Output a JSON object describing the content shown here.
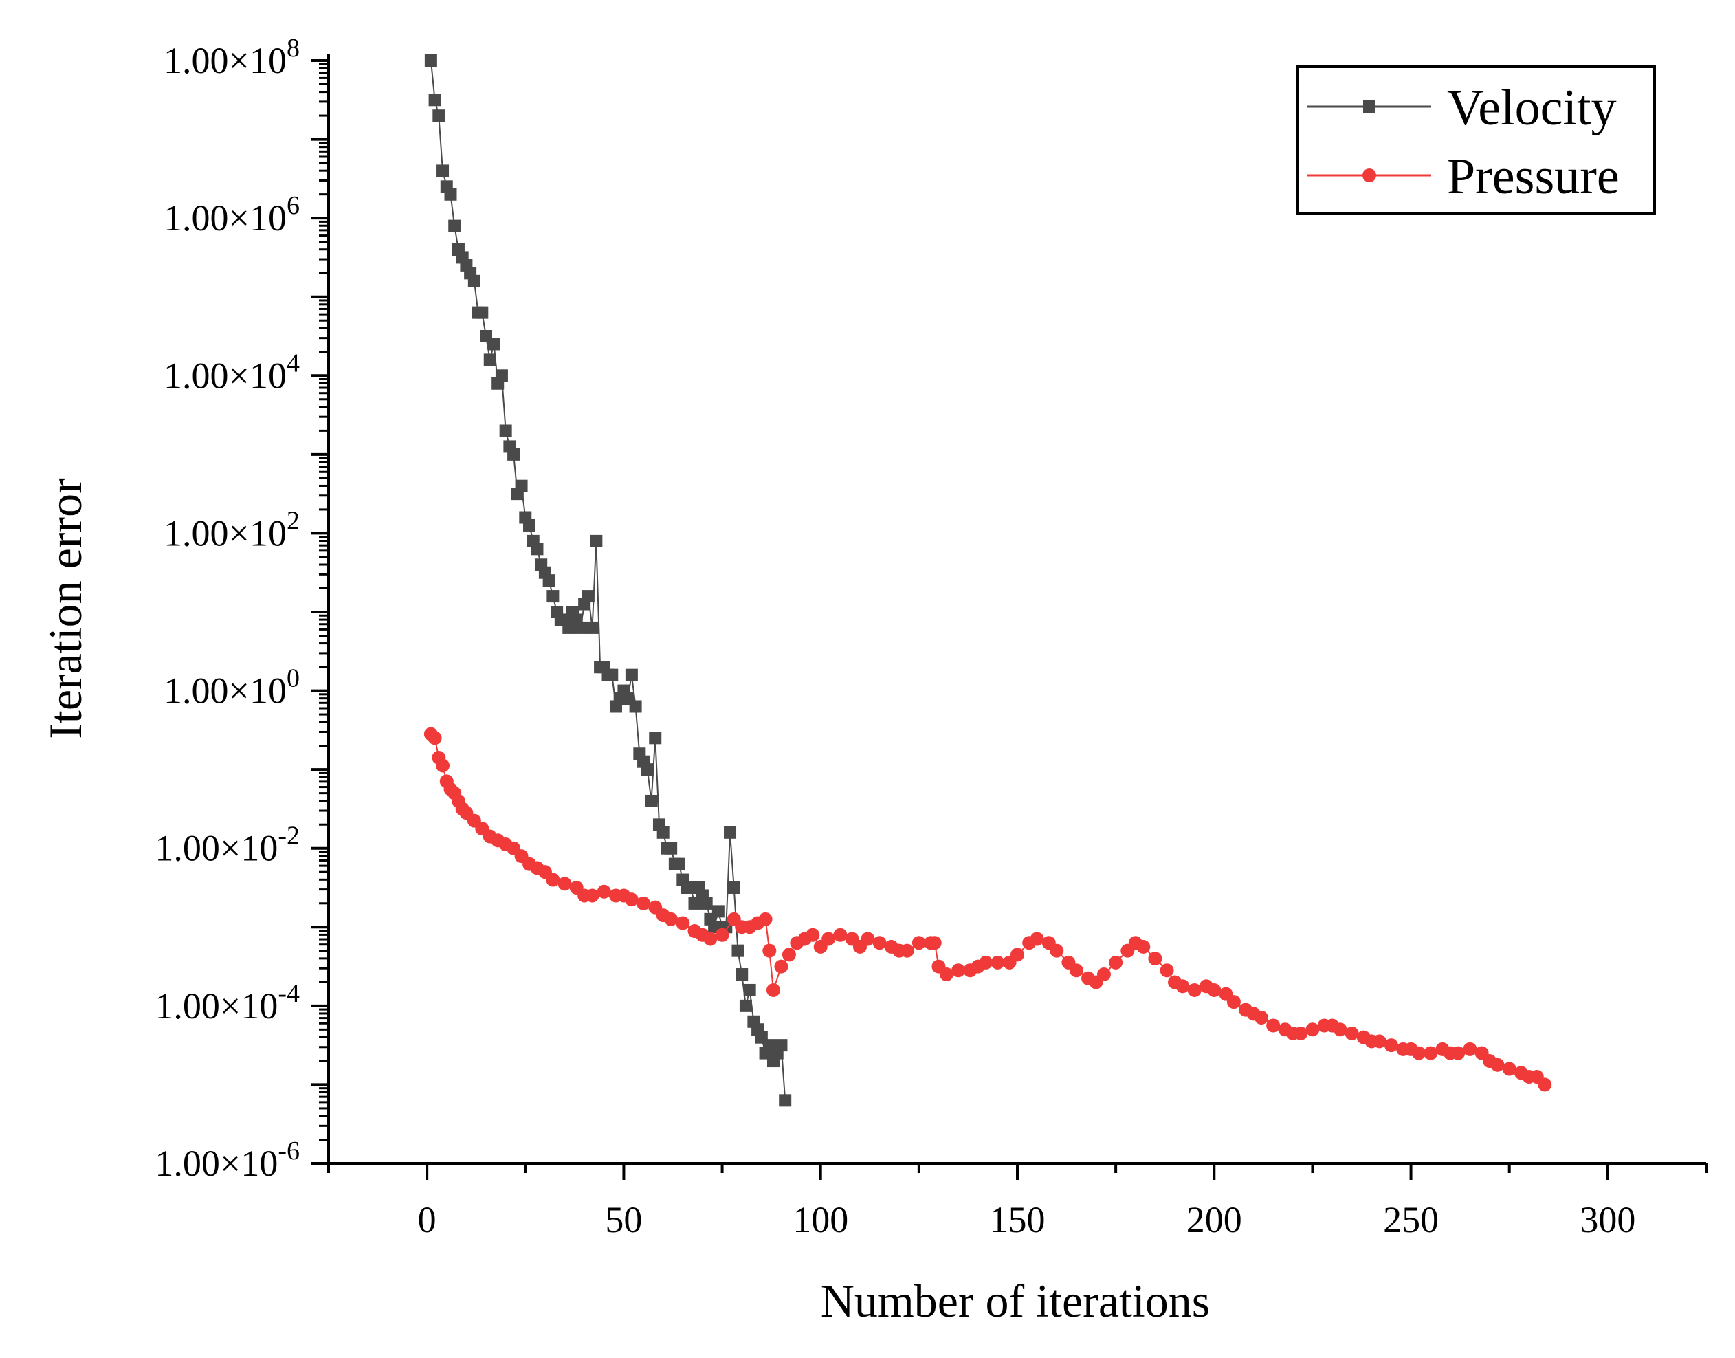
{
  "chart_data": {
    "type": "line",
    "title": "",
    "xlabel": "Number of iterations",
    "ylabel": "Iteration error",
    "xlim": [
      -25,
      325
    ],
    "ylim_log10": [
      -6,
      8
    ],
    "y_scale": "log10",
    "x_ticks": [
      0,
      50,
      100,
      150,
      200,
      250,
      300
    ],
    "x_tick_labels": [
      "0",
      "50",
      "100",
      "150",
      "200",
      "250",
      "300"
    ],
    "y_ticks_exp": [
      8,
      6,
      4,
      2,
      0,
      -2,
      -4,
      -6
    ],
    "y_tick_mantissa": "1.00×10",
    "y_tick_exponents": [
      "8",
      "6",
      "4",
      "2",
      "0",
      "-2",
      "-4",
      "-6"
    ],
    "legend": {
      "position": "top-right",
      "entries": [
        {
          "label": "Velocity",
          "marker": "square",
          "color": "#4a4a4a"
        },
        {
          "label": "Pressure",
          "marker": "circle",
          "color": "#f03a3a"
        }
      ]
    },
    "series": [
      {
        "name": "Velocity",
        "color": "#4a4a4a",
        "marker": "square",
        "x": [
          1,
          2,
          3,
          4,
          5,
          6,
          7,
          8,
          9,
          10,
          11,
          12,
          13,
          14,
          15,
          16,
          17,
          18,
          19,
          20,
          21,
          22,
          23,
          24,
          25,
          26,
          27,
          28,
          29,
          30,
          31,
          32,
          33,
          34,
          35,
          36,
          37,
          38,
          39,
          40,
          41,
          42,
          43,
          44,
          45,
          46,
          47,
          48,
          49,
          50,
          51,
          52,
          53,
          54,
          55,
          56,
          57,
          58,
          59,
          60,
          61,
          62,
          63,
          64,
          65,
          66,
          67,
          68,
          69,
          70,
          71,
          72,
          73,
          74,
          75,
          76,
          77,
          78,
          79,
          80,
          81,
          82,
          83,
          84,
          85,
          86,
          87,
          88,
          89,
          90,
          91
        ],
        "log10_values": [
          8.0,
          7.5,
          7.3,
          6.6,
          6.4,
          6.3,
          5.9,
          5.6,
          5.5,
          5.4,
          5.3,
          5.2,
          4.8,
          4.8,
          4.5,
          4.2,
          4.4,
          3.9,
          4.0,
          3.3,
          3.1,
          3.0,
          2.5,
          2.6,
          2.2,
          2.1,
          1.9,
          1.8,
          1.6,
          1.5,
          1.4,
          1.2,
          1.0,
          0.9,
          0.9,
          0.8,
          1.0,
          0.9,
          0.8,
          1.1,
          1.2,
          0.8,
          1.9,
          0.3,
          0.3,
          0.2,
          0.2,
          -0.2,
          -0.1,
          0.0,
          -0.1,
          0.2,
          -0.2,
          -0.8,
          -0.9,
          -1.0,
          -1.4,
          -0.6,
          -1.7,
          -1.8,
          -2.0,
          -2.0,
          -2.2,
          -2.2,
          -2.4,
          -2.5,
          -2.5,
          -2.7,
          -2.5,
          -2.6,
          -2.7,
          -2.9,
          -3.0,
          -2.8,
          -3.0,
          -3.0,
          -1.8,
          -2.5,
          -3.3,
          -3.6,
          -4.0,
          -3.8,
          -4.2,
          -4.3,
          -4.4,
          -4.6,
          -4.5,
          -4.7,
          -4.6,
          -4.5,
          -5.2
        ]
      },
      {
        "name": "Pressure",
        "color": "#f03a3a",
        "marker": "circle",
        "x": [
          1,
          2,
          3,
          4,
          5,
          6,
          7,
          8,
          9,
          10,
          12,
          14,
          16,
          18,
          20,
          22,
          24,
          26,
          28,
          30,
          32,
          35,
          38,
          40,
          42,
          45,
          48,
          50,
          52,
          55,
          58,
          60,
          62,
          65,
          68,
          70,
          72,
          75,
          78,
          80,
          82,
          84,
          86,
          87,
          88,
          90,
          92,
          94,
          96,
          98,
          100,
          102,
          105,
          108,
          110,
          112,
          115,
          118,
          120,
          122,
          125,
          128,
          129,
          130,
          132,
          135,
          138,
          140,
          142,
          145,
          148,
          150,
          153,
          155,
          158,
          160,
          163,
          165,
          168,
          170,
          172,
          175,
          178,
          180,
          182,
          185,
          188,
          190,
          192,
          195,
          198,
          200,
          203,
          205,
          208,
          210,
          212,
          215,
          218,
          220,
          222,
          225,
          228,
          230,
          232,
          235,
          238,
          240,
          242,
          245,
          248,
          250,
          252,
          255,
          258,
          260,
          262,
          265,
          268,
          270,
          272,
          275,
          278,
          280,
          282,
          284
        ],
        "log10_values": [
          -0.55,
          -0.6,
          -0.85,
          -0.95,
          -1.15,
          -1.25,
          -1.3,
          -1.4,
          -1.5,
          -1.55,
          -1.65,
          -1.75,
          -1.85,
          -1.9,
          -1.95,
          -2.0,
          -2.1,
          -2.2,
          -2.25,
          -2.3,
          -2.4,
          -2.45,
          -2.5,
          -2.6,
          -2.6,
          -2.55,
          -2.6,
          -2.6,
          -2.65,
          -2.7,
          -2.75,
          -2.85,
          -2.9,
          -2.95,
          -3.05,
          -3.1,
          -3.15,
          -3.1,
          -2.9,
          -3.0,
          -3.0,
          -2.95,
          -2.9,
          -3.3,
          -3.8,
          -3.5,
          -3.35,
          -3.2,
          -3.15,
          -3.1,
          -3.25,
          -3.15,
          -3.1,
          -3.15,
          -3.25,
          -3.15,
          -3.2,
          -3.25,
          -3.3,
          -3.3,
          -3.2,
          -3.2,
          -3.2,
          -3.5,
          -3.6,
          -3.55,
          -3.55,
          -3.5,
          -3.45,
          -3.45,
          -3.45,
          -3.35,
          -3.2,
          -3.15,
          -3.2,
          -3.3,
          -3.45,
          -3.55,
          -3.65,
          -3.7,
          -3.6,
          -3.45,
          -3.3,
          -3.2,
          -3.25,
          -3.4,
          -3.55,
          -3.7,
          -3.75,
          -3.8,
          -3.75,
          -3.8,
          -3.85,
          -3.95,
          -4.05,
          -4.1,
          -4.15,
          -4.25,
          -4.3,
          -4.35,
          -4.35,
          -4.3,
          -4.25,
          -4.25,
          -4.3,
          -4.35,
          -4.4,
          -4.45,
          -4.45,
          -4.5,
          -4.55,
          -4.55,
          -4.6,
          -4.6,
          -4.55,
          -4.6,
          -4.6,
          -4.55,
          -4.6,
          -4.7,
          -4.75,
          -4.8,
          -4.85,
          -4.9,
          -4.9,
          -5.0
        ]
      }
    ]
  }
}
